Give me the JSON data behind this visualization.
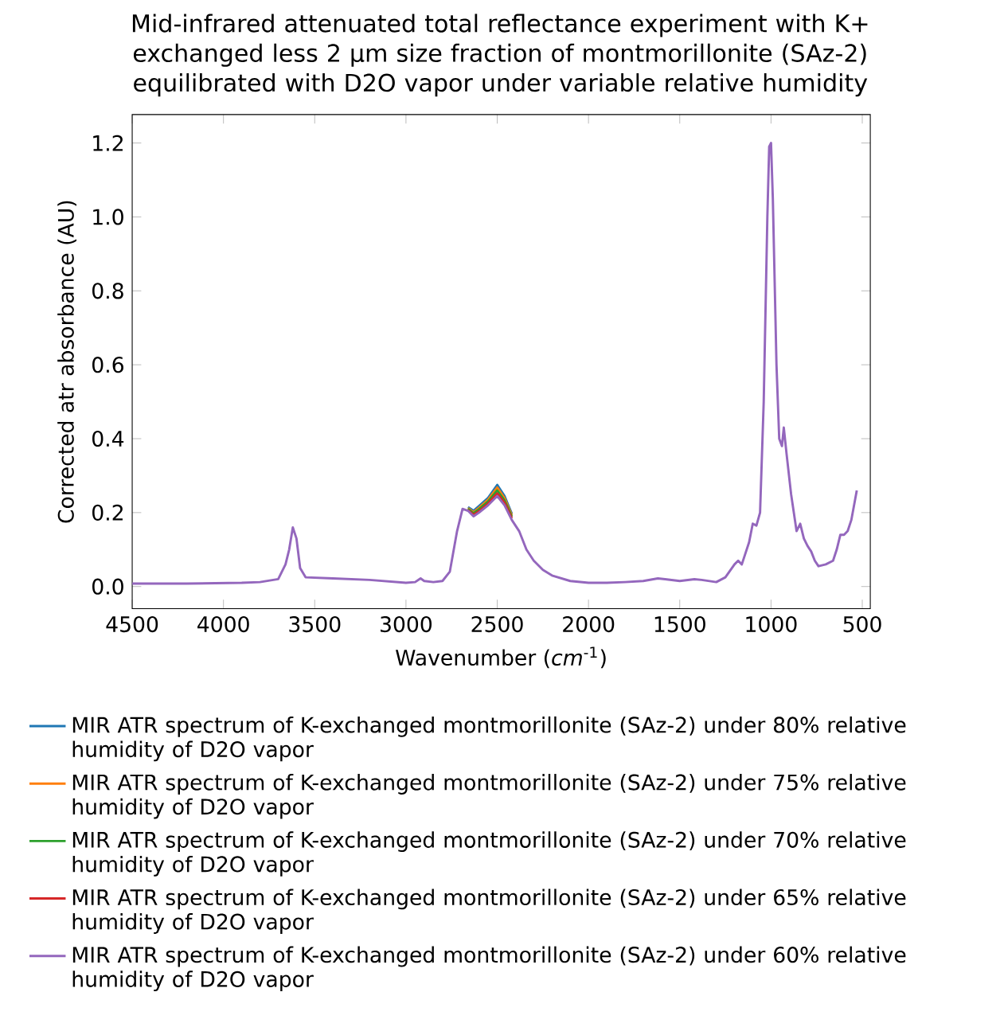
{
  "chart_data": {
    "type": "line",
    "title": "Mid-infrared attenuated total reflectance experiment with K+ exchanged less 2 µm size fraction of montmorillonite (SAz-2) equilibrated with D2O vapor under variable relative humidity",
    "xlabel": "Wavenumber (*cm*$^{-1}$)",
    "ylabel": "Corrected atr absorbance (AU)",
    "xlim": [
      4500,
      456
    ],
    "ylim": [
      -0.06,
      1.277
    ],
    "xticks": [
      4500,
      4000,
      3500,
      3000,
      2500,
      2000,
      1500,
      1000,
      500
    ],
    "yticks": [
      {
        "value": 0,
        "label": "0.0"
      },
      0.2,
      0.4,
      0.6,
      0.8,
      {
        "value": 1,
        "label": "1.0"
      },
      1.2
    ],
    "legend": "bottom",
    "grid": false,
    "marker": "none",
    "line_style": "solid",
    "x": [
      4500,
      4200,
      3900,
      3800,
      3700,
      3660,
      3640,
      3620,
      3600,
      3580,
      3550,
      3400,
      3200,
      3000,
      2950,
      2920,
      2900,
      2850,
      2800,
      2760,
      2720,
      2690,
      2660,
      2630,
      2600,
      2550,
      2500,
      2460,
      2420,
      2380,
      2340,
      2300,
      2250,
      2200,
      2100,
      2000,
      1900,
      1800,
      1700,
      1620,
      1580,
      1500,
      1420,
      1380,
      1300,
      1250,
      1200,
      1180,
      1160,
      1120,
      1100,
      1080,
      1060,
      1040,
      1020,
      1010,
      1000,
      990,
      970,
      955,
      940,
      930,
      915,
      890,
      860,
      840,
      820,
      800,
      780,
      760,
      740,
      700,
      660,
      640,
      620,
      600,
      580,
      560,
      530
    ],
    "series": [
      {
        "name": "MIR ATR spectrum of K-exchanged montmorillonite (SAz-2) under 80% relative humidity of D2O vapor",
        "color": "#1f77b4",
        "values": [
          null,
          null,
          null,
          null,
          null,
          null,
          null,
          null,
          null,
          null,
          null,
          null,
          null,
          null,
          null,
          null,
          null,
          null,
          null,
          null,
          null,
          null,
          0.215,
          0.205,
          0.218,
          0.24,
          0.275,
          0.245,
          0.197,
          null,
          null,
          null,
          null,
          null,
          null,
          null,
          null,
          null,
          null,
          null,
          null,
          null,
          null,
          null,
          null,
          null,
          null,
          null,
          null,
          null,
          null,
          null,
          null,
          null,
          null,
          null,
          null,
          null,
          null,
          null,
          null,
          null,
          null,
          null,
          null,
          null,
          null,
          null,
          null,
          null,
          null,
          null,
          null,
          null,
          null,
          null,
          null,
          null,
          null
        ]
      },
      {
        "name": "MIR ATR spectrum of K-exchanged montmorillonite (SAz-2) under 75% relative humidity of D2O vapor",
        "color": "#ff7f0e",
        "values": [
          null,
          null,
          null,
          null,
          null,
          null,
          null,
          null,
          null,
          null,
          null,
          null,
          null,
          null,
          null,
          null,
          null,
          null,
          null,
          null,
          null,
          null,
          0.212,
          0.201,
          0.213,
          0.235,
          0.268,
          0.239,
          0.193,
          null,
          null,
          null,
          null,
          null,
          null,
          null,
          null,
          null,
          null,
          null,
          null,
          null,
          null,
          null,
          null,
          null,
          null,
          null,
          null,
          null,
          null,
          null,
          null,
          null,
          null,
          null,
          null,
          null,
          null,
          null,
          null,
          null,
          null,
          null,
          null,
          null,
          null,
          null,
          null,
          null,
          null,
          null,
          null,
          null,
          null,
          null,
          null,
          null,
          null
        ]
      },
      {
        "name": "MIR ATR spectrum of K-exchanged montmorillonite (SAz-2) under 70% relative humidity of D2O vapor",
        "color": "#2ca02c",
        "values": [
          null,
          null,
          null,
          null,
          null,
          null,
          null,
          null,
          null,
          null,
          null,
          null,
          null,
          null,
          null,
          null,
          null,
          null,
          null,
          null,
          null,
          null,
          0.21,
          0.198,
          0.209,
          0.23,
          0.26,
          0.233,
          0.189,
          null,
          null,
          null,
          null,
          null,
          null,
          null,
          null,
          null,
          null,
          null,
          null,
          null,
          null,
          null,
          null,
          null,
          null,
          null,
          null,
          null,
          null,
          null,
          null,
          null,
          null,
          null,
          null,
          null,
          null,
          null,
          null,
          null,
          null,
          null,
          null,
          null,
          null,
          null,
          null,
          null,
          null,
          null,
          null,
          null,
          null,
          null,
          null,
          null,
          null
        ]
      },
      {
        "name": "MIR ATR spectrum of K-exchanged montmorillonite (SAz-2) under 65% relative humidity of D2O vapor",
        "color": "#d62728",
        "values": [
          null,
          null,
          null,
          null,
          null,
          null,
          null,
          null,
          null,
          null,
          null,
          null,
          null,
          null,
          null,
          null,
          null,
          null,
          null,
          null,
          null,
          null,
          0.207,
          0.194,
          0.204,
          0.225,
          0.252,
          0.227,
          0.185,
          null,
          null,
          null,
          null,
          null,
          null,
          null,
          null,
          null,
          null,
          null,
          null,
          null,
          null,
          null,
          null,
          null,
          null,
          null,
          null,
          null,
          null,
          null,
          null,
          null,
          null,
          null,
          null,
          null,
          null,
          null,
          null,
          null,
          null,
          null,
          null,
          null,
          null,
          null,
          null,
          null,
          null,
          null,
          null,
          null,
          null,
          null,
          null,
          null,
          null
        ]
      },
      {
        "name": "MIR ATR spectrum of K-exchanged montmorillonite (SAz-2) under 60% relative humidity of D2O vapor",
        "color": "#9467bd",
        "values": [
          0.008,
          0.008,
          0.01,
          0.012,
          0.02,
          0.06,
          0.1,
          0.16,
          0.13,
          0.05,
          0.025,
          0.022,
          0.018,
          0.01,
          0.012,
          0.022,
          0.015,
          0.012,
          0.015,
          0.04,
          0.15,
          0.21,
          0.205,
          0.19,
          0.2,
          0.22,
          0.245,
          0.22,
          0.18,
          0.15,
          0.1,
          0.07,
          0.045,
          0.03,
          0.015,
          0.01,
          0.01,
          0.012,
          0.015,
          0.022,
          0.02,
          0.015,
          0.02,
          0.018,
          0.012,
          0.025,
          0.06,
          0.07,
          0.06,
          0.12,
          0.17,
          0.165,
          0.2,
          0.5,
          1.0,
          1.19,
          1.2,
          1.05,
          0.6,
          0.4,
          0.38,
          0.43,
          0.36,
          0.25,
          0.15,
          0.17,
          0.13,
          0.11,
          0.095,
          0.07,
          0.055,
          0.06,
          0.07,
          0.1,
          0.14,
          0.14,
          0.15,
          0.18,
          0.26
        ]
      }
    ]
  }
}
